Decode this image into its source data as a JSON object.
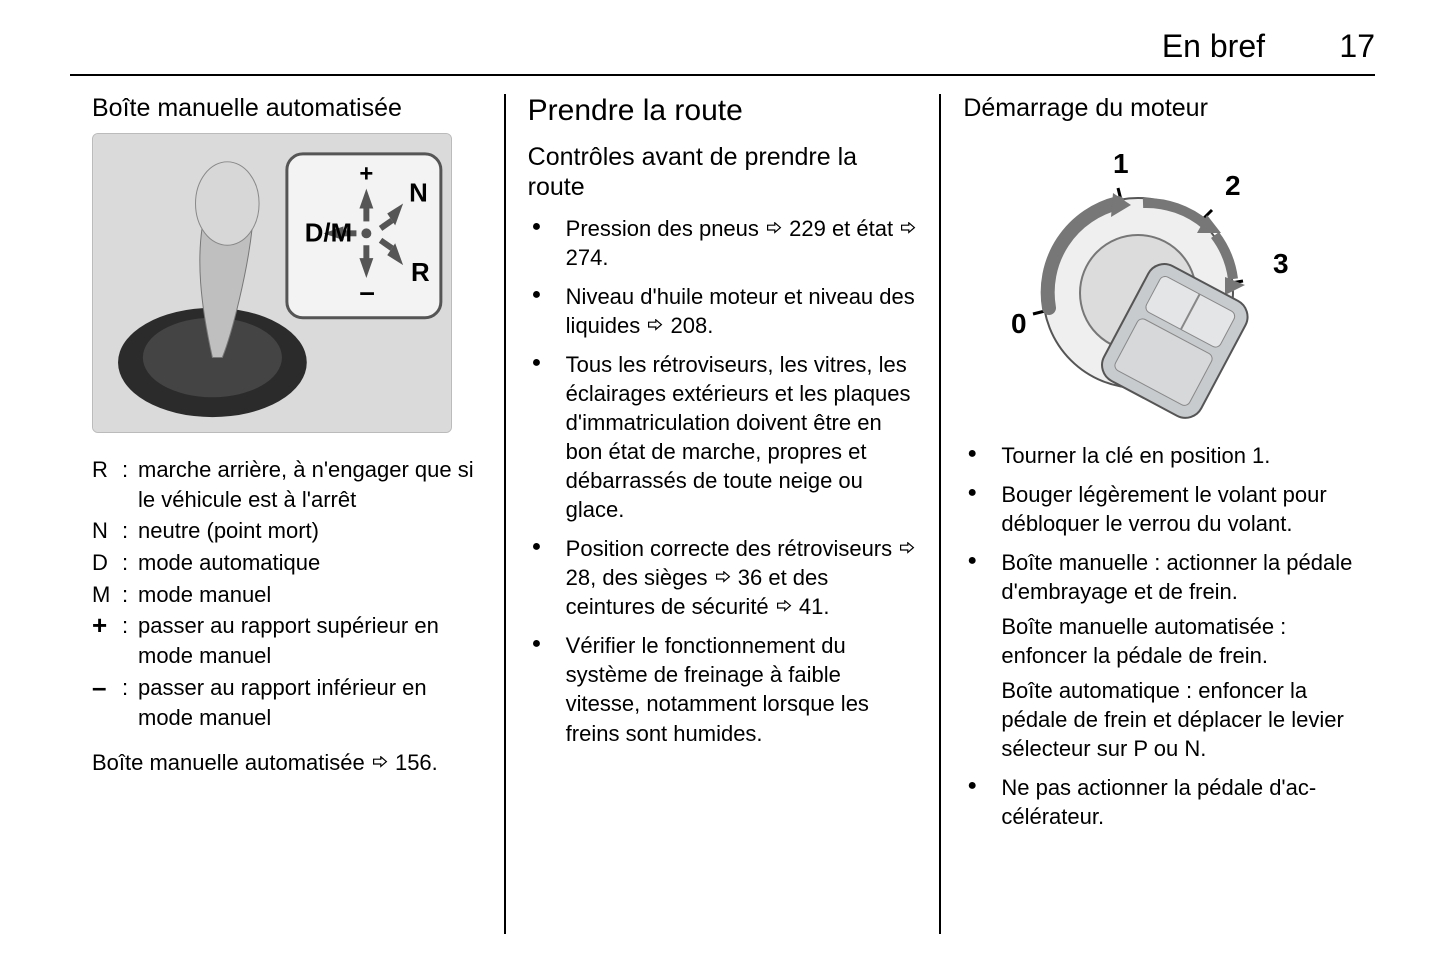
{
  "header": {
    "section": "En bref",
    "page": "17"
  },
  "col1": {
    "title": "Boîte manuelle automatisée",
    "gear_labels": {
      "dm": "D/M",
      "n": "N",
      "r": "R",
      "plus": "+",
      "minus": "–"
    },
    "defs": [
      {
        "sym": "R",
        "bold": false,
        "txt": "marche arrière, à n'engager que si le véhicule est à l'arrêt"
      },
      {
        "sym": "N",
        "bold": false,
        "txt": "neutre (point mort)"
      },
      {
        "sym": "D",
        "bold": false,
        "txt": "mode automatique"
      },
      {
        "sym": "M",
        "bold": false,
        "txt": "mode manuel"
      },
      {
        "sym": "+",
        "bold": true,
        "txt": "passer au rapport supérieur en mode manuel"
      },
      {
        "sym": "–",
        "bold": true,
        "txt": "passer au rapport inférieur en mode manuel"
      }
    ],
    "ref_text_a": "Boîte manuelle automatisée ",
    "ref_text_b": " 156."
  },
  "col2": {
    "h1": "Prendre la route",
    "h3": "Contrôles avant de prendre la route",
    "items": [
      {
        "pre": "Pression des pneus ",
        "ref1": " 229",
        "mid": " et état ",
        "ref2": " 274."
      },
      {
        "pre": "Niveau d'huile moteur et niveau des liquides ",
        "ref1": " 208."
      },
      {
        "pre": "Tous les rétroviseurs, les vitres, les éclairages extérieurs et les plaques d'immatriculation doivent être en bon état de marche, propres et débarrassés de toute neige ou glace."
      },
      {
        "pre": "Position correcte des rétrovi­seurs ",
        "ref1": " 28",
        "mid": ", des sièges ",
        "ref2": " 36",
        "mid2": " et des ceintures de sécurité ",
        "ref3": " 41."
      },
      {
        "pre": "Vérifier le fonctionnement du système de freinage à faible vitesse, notamment lorsque les freins sont humides."
      }
    ]
  },
  "col3": {
    "h2": "Démarrage du moteur",
    "ign_labels": {
      "p0": "0",
      "p1": "1",
      "p2": "2",
      "p3": "3"
    },
    "items": [
      {
        "paras": [
          "Tourner la clé en position 1."
        ]
      },
      {
        "paras": [
          "Bouger légèrement le volant pour débloquer le verrou du volant."
        ]
      },
      {
        "paras": [
          "Boîte manuelle : actionner la pédale d'embrayage et de frein.",
          "Boîte manuelle automatisée : enfoncer la pédale de frein.",
          "Boîte automatique : enfoncer la pédale de frein et déplacer le levier sélecteur sur P ou N."
        ]
      },
      {
        "paras": [
          "Ne pas actionner la pédale d'ac­célérateur."
        ]
      }
    ]
  },
  "style": {
    "colors": {
      "text": "#000000",
      "bg": "#ffffff",
      "rule": "#000000",
      "imgbg": "#e8e8e8",
      "imgborder": "#bbbbbb",
      "arrow": "#555555",
      "key": "#9aa0a6"
    },
    "fonts": {
      "body_pt": 16,
      "h1_pt": 22,
      "h2_pt": 19,
      "h3_pt": 19,
      "header_pt": 24
    }
  }
}
